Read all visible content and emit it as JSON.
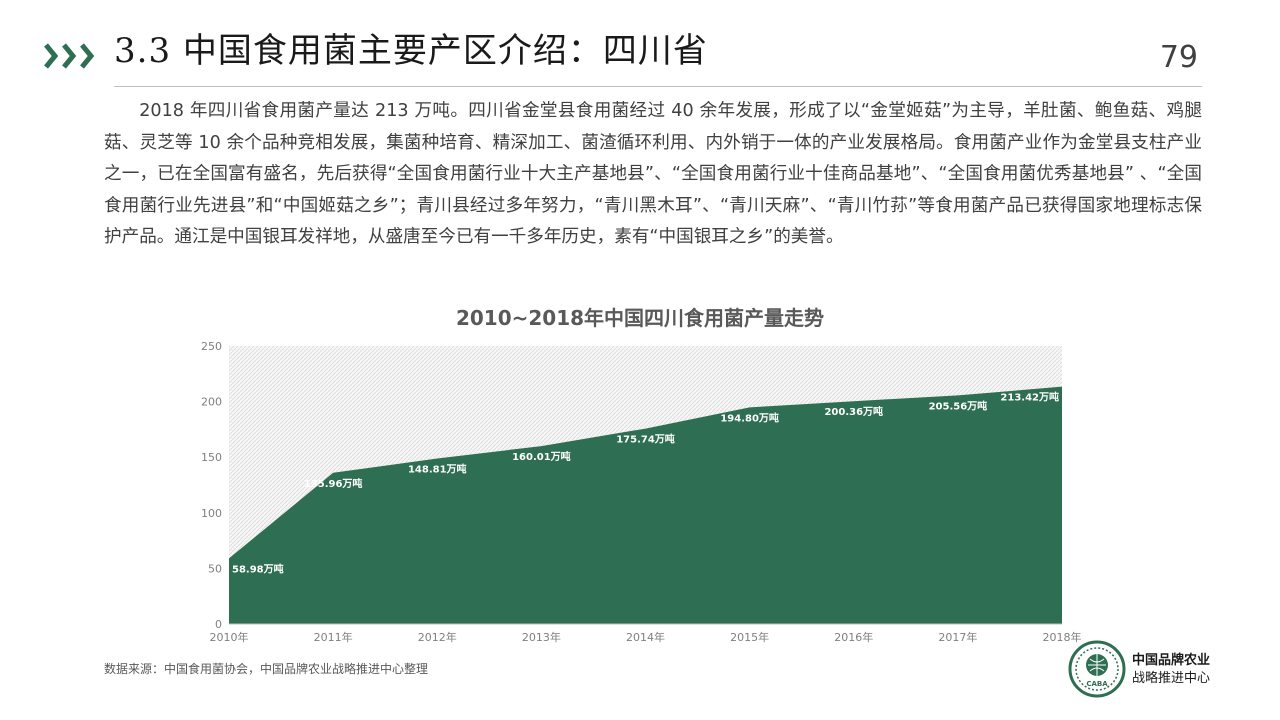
{
  "header": {
    "title": "3.3 中国食用菌主要产区介绍：四川省",
    "page_number": "79"
  },
  "body_text": "2018 年四川省食用菌产量达 213 万吨。四川省金堂县食用菌经过 40 余年发展，形成了以“金堂姬菇”为主导，羊肚菌、鲍鱼菇、鸡腿菇、灵芝等 10 余个品种竞相发展，集菌种培育、精深加工、菌渣循环利用、内外销于一体的产业发展格局。食用菌产业作为金堂县支柱产业之一，已在全国富有盛名，先后获得“全国食用菌行业十大主产基地县”、“全国食用菌行业十佳商品基地”、“全国食用菌优秀基地县” 、“全国食用菌行业先进县”和“中国姬菇之乡”；青川县经过多年努力，“青川黑木耳”、“青川天麻”、“青川竹荪”等食用菌产品已获得国家地理标志保护产品。通江是中国银耳发祥地，从盛唐至今已有一千多年历史，素有“中国银耳之乡”的美誉。",
  "chart_data": {
    "type": "area",
    "title": "2010~2018年中国四川食用菌产量走势",
    "categories": [
      "2010年",
      "2011年",
      "2012年",
      "2013年",
      "2014年",
      "2015年",
      "2016年",
      "2017年",
      "2018年"
    ],
    "values": [
      58.98,
      135.96,
      148.81,
      160.01,
      175.74,
      194.8,
      200.36,
      205.56,
      213.42
    ],
    "data_labels": [
      "58.98万吨",
      "135.96万吨",
      "148.81万吨",
      "160.01万吨",
      "175.74万吨",
      "194.80万吨",
      "200.36万吨",
      "205.56万吨",
      "213.42万吨"
    ],
    "yticks": [
      "0",
      "50",
      "100",
      "150",
      "200",
      "250"
    ],
    "ylim": [
      0,
      250
    ],
    "fill_color": "#2e6e52",
    "background": "hatched-light-gray",
    "grid": false,
    "legend": "none"
  },
  "footer": {
    "source": "数据来源：中国食用菌协会，中国品牌农业战略推进中心整理",
    "logo_line1": "中国品牌农业",
    "logo_line2": "战略推进中心",
    "logo_icon": "caba-emblem",
    "logo_badge": "CABA"
  },
  "colors": {
    "accent": "#2e6e52",
    "text": "#404040"
  }
}
